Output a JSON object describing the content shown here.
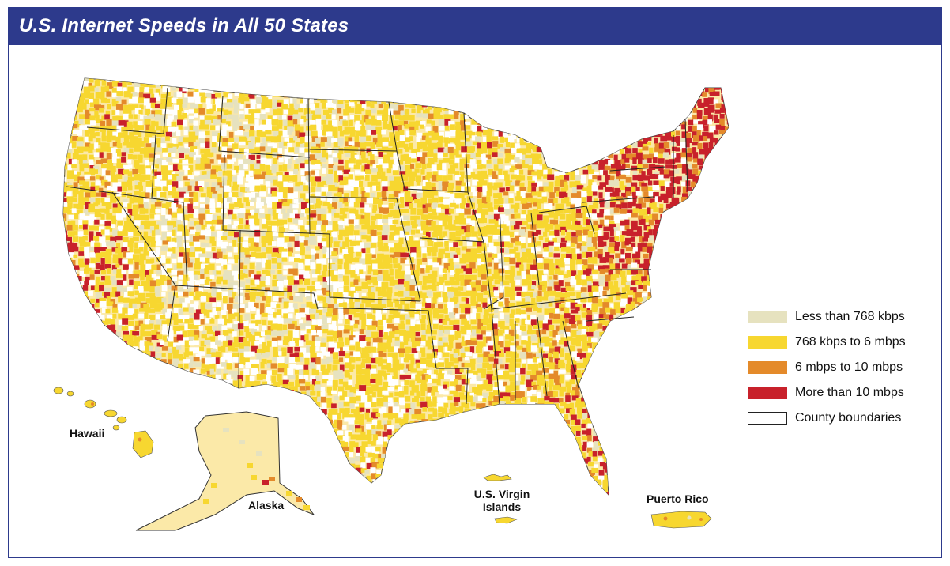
{
  "title": "U.S. Internet Speeds in All 50 States",
  "legend": [
    {
      "label": "Less than 768 kbps",
      "color": "#e6e2bf",
      "key": "low"
    },
    {
      "label": "768 kbps to 6 mbps",
      "color": "#f7d730",
      "key": "mid"
    },
    {
      "label": "6 mbps to 10 mbps",
      "color": "#e48a2a",
      "key": "high"
    },
    {
      "label": "More than 10 mbps",
      "color": "#c8212b",
      "key": "top"
    },
    {
      "label": "County boundaries",
      "color": "#ffffff",
      "key": "boundary"
    }
  ],
  "labels": {
    "hawaii": "Hawaii",
    "alaska": "Alaska",
    "virgin_islands": "U.S. Virgin Islands",
    "puerto_rico": "Puerto Rico"
  },
  "colors": {
    "frame": "#2d3a8c",
    "state_border": "#222222"
  }
}
